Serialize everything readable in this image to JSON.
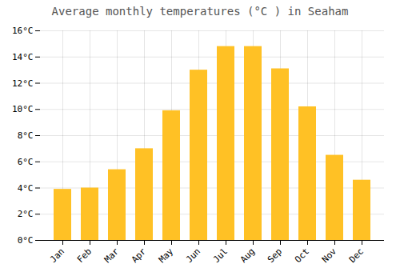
{
  "chart_data": {
    "type": "bar",
    "title": "Average monthly temperatures (°C ) in Seaham",
    "categories": [
      "Jan",
      "Feb",
      "Mar",
      "Apr",
      "May",
      "Jun",
      "Jul",
      "Aug",
      "Sep",
      "Oct",
      "Nov",
      "Dec"
    ],
    "values": [
      3.9,
      4.0,
      5.4,
      7.0,
      9.9,
      13.0,
      14.8,
      14.8,
      13.1,
      10.2,
      6.5,
      4.6
    ],
    "color": "#FFC125",
    "ylim": [
      0,
      16
    ],
    "yticks": [
      {
        "value": 0,
        "label": "0°C"
      },
      {
        "value": 2,
        "label": "2°C"
      },
      {
        "value": 4,
        "label": "4°C"
      },
      {
        "value": 6,
        "label": "6°C"
      },
      {
        "value": 8,
        "label": "8°C"
      },
      {
        "value": 10,
        "label": "10°C"
      },
      {
        "value": 12,
        "label": "12°C"
      },
      {
        "value": 14,
        "label": "14°C"
      },
      {
        "value": 16,
        "label": "16°C"
      }
    ],
    "grid": true
  }
}
